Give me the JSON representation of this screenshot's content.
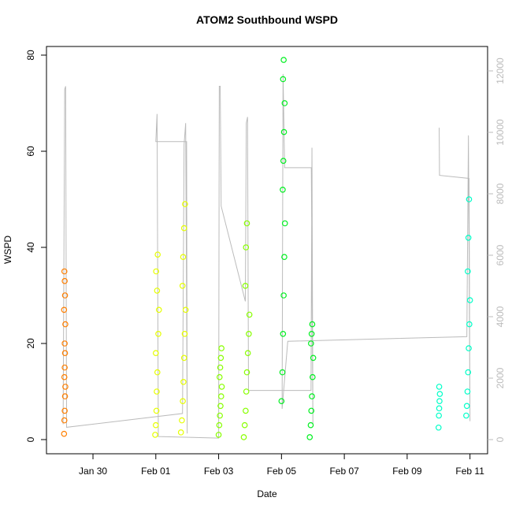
{
  "chart_data": {
    "type": "scatter",
    "title": "ATOM2 Southbound WSPD",
    "x_label": "Date",
    "y_label": "WSPD",
    "xlim": [
      28.52,
      42.56
    ],
    "xticks": [
      {
        "value": 30,
        "label": "Jan 30"
      },
      {
        "value": 32,
        "label": "Feb 01"
      },
      {
        "value": 34,
        "label": "Feb 03"
      },
      {
        "value": 36,
        "label": "Feb 05"
      },
      {
        "value": 38,
        "label": "Feb 07"
      },
      {
        "value": 40,
        "label": "Feb 09"
      },
      {
        "value": 42,
        "label": "Feb 11"
      }
    ],
    "ylim": [
      -2.95,
      81.8
    ],
    "yticks": [
      0,
      20,
      40,
      60,
      80
    ],
    "y2lim": [
      -461,
      12795
    ],
    "y2ticks": [
      0,
      2000,
      4000,
      6000,
      8000,
      10000,
      12000
    ],
    "y2_color": "#bbbbbb",
    "series": [
      {
        "color": "#FF7F00",
        "x": [
          29.08,
          29.09,
          29.1,
          29.11,
          29.12,
          29.09,
          29.1,
          29.11,
          29.1,
          29.12,
          29.08,
          29.11,
          29.1,
          29.09
        ],
        "values": [
          1.2,
          4,
          6,
          9,
          11,
          13,
          15,
          18,
          20,
          24,
          27,
          30,
          33,
          35
        ]
      },
      {
        "color": "#E6FF00",
        "x": [
          31.98,
          32.0,
          32.02,
          32.03,
          32.05,
          32.0,
          32.08,
          32.1,
          32.04,
          32.01,
          32.06,
          32.8,
          32.83,
          32.86,
          32.88,
          32.9,
          32.92,
          32.95,
          32.85,
          32.87,
          32.9,
          32.93
        ],
        "values": [
          1,
          3,
          6,
          10,
          14,
          18,
          22,
          27,
          31,
          35,
          38.5,
          1.5,
          4,
          8,
          12,
          17,
          22,
          27,
          32,
          38,
          44,
          49
        ]
      },
      {
        "color": "#88FF00",
        "x": [
          34.0,
          34.02,
          34.04,
          34.06,
          34.08,
          34.1,
          34.03,
          34.05,
          34.07,
          34.09,
          34.8,
          34.83,
          34.86,
          34.88,
          34.9,
          34.93,
          34.96,
          34.98,
          34.85,
          34.87,
          34.9
        ],
        "values": [
          1,
          3,
          5,
          7,
          9,
          11,
          13,
          15,
          17,
          19,
          0.5,
          3,
          6,
          10,
          14,
          18,
          22,
          26,
          32,
          40,
          45
        ]
      },
      {
        "color": "#00F020",
        "x": [
          36.0,
          36.03,
          36.05,
          36.07,
          36.09,
          36.11,
          36.04,
          36.06,
          36.08,
          36.1,
          36.05,
          36.07,
          36.9,
          36.93,
          36.95,
          36.97,
          36.99,
          37.01,
          36.94,
          36.96,
          36.98
        ],
        "values": [
          8,
          14,
          22,
          30,
          38,
          45,
          52,
          58,
          64,
          70,
          75,
          79,
          0.5,
          3,
          6,
          9,
          13,
          17,
          20,
          22,
          24
        ]
      },
      {
        "color": "#00FFC8",
        "x": [
          41.0,
          41.01,
          41.02,
          41.03,
          41.04,
          41.02,
          41.88,
          41.9,
          41.92,
          41.94,
          41.96,
          41.98,
          42.0,
          41.93,
          41.95,
          41.97
        ],
        "values": [
          2.5,
          5,
          6.5,
          8,
          9.5,
          11,
          5,
          7,
          10,
          14,
          19,
          24,
          29,
          35,
          42,
          50
        ]
      },
      {
        "color": "#bbbbbb",
        "axis": "y2",
        "x": [
          29.05,
          29.1,
          29.13,
          29.16,
          32.85,
          32.9,
          32.95,
          33.0,
          32.98,
          32.0,
          32.04,
          32.08,
          34.0,
          34.02,
          34.05,
          34.08,
          34.85,
          34.88,
          34.92,
          34.95,
          36.94,
          36.97,
          37.0,
          36.95,
          36.1,
          36.05,
          36.02,
          36.2,
          41.9,
          41.95,
          42.0,
          41.97,
          41.03,
          41.02
        ],
        "values": [
          500,
          11400,
          11500,
          400,
          850,
          9600,
          10300,
          200,
          9700,
          9700,
          10600,
          100,
          50,
          11500,
          11500,
          7600,
          4500,
          10300,
          10500,
          1600,
          1600,
          9500,
          500,
          8850,
          8850,
          11900,
          1000,
          3200,
          3350,
          9900,
          600,
          8500,
          8600,
          10150
        ]
      }
    ]
  }
}
